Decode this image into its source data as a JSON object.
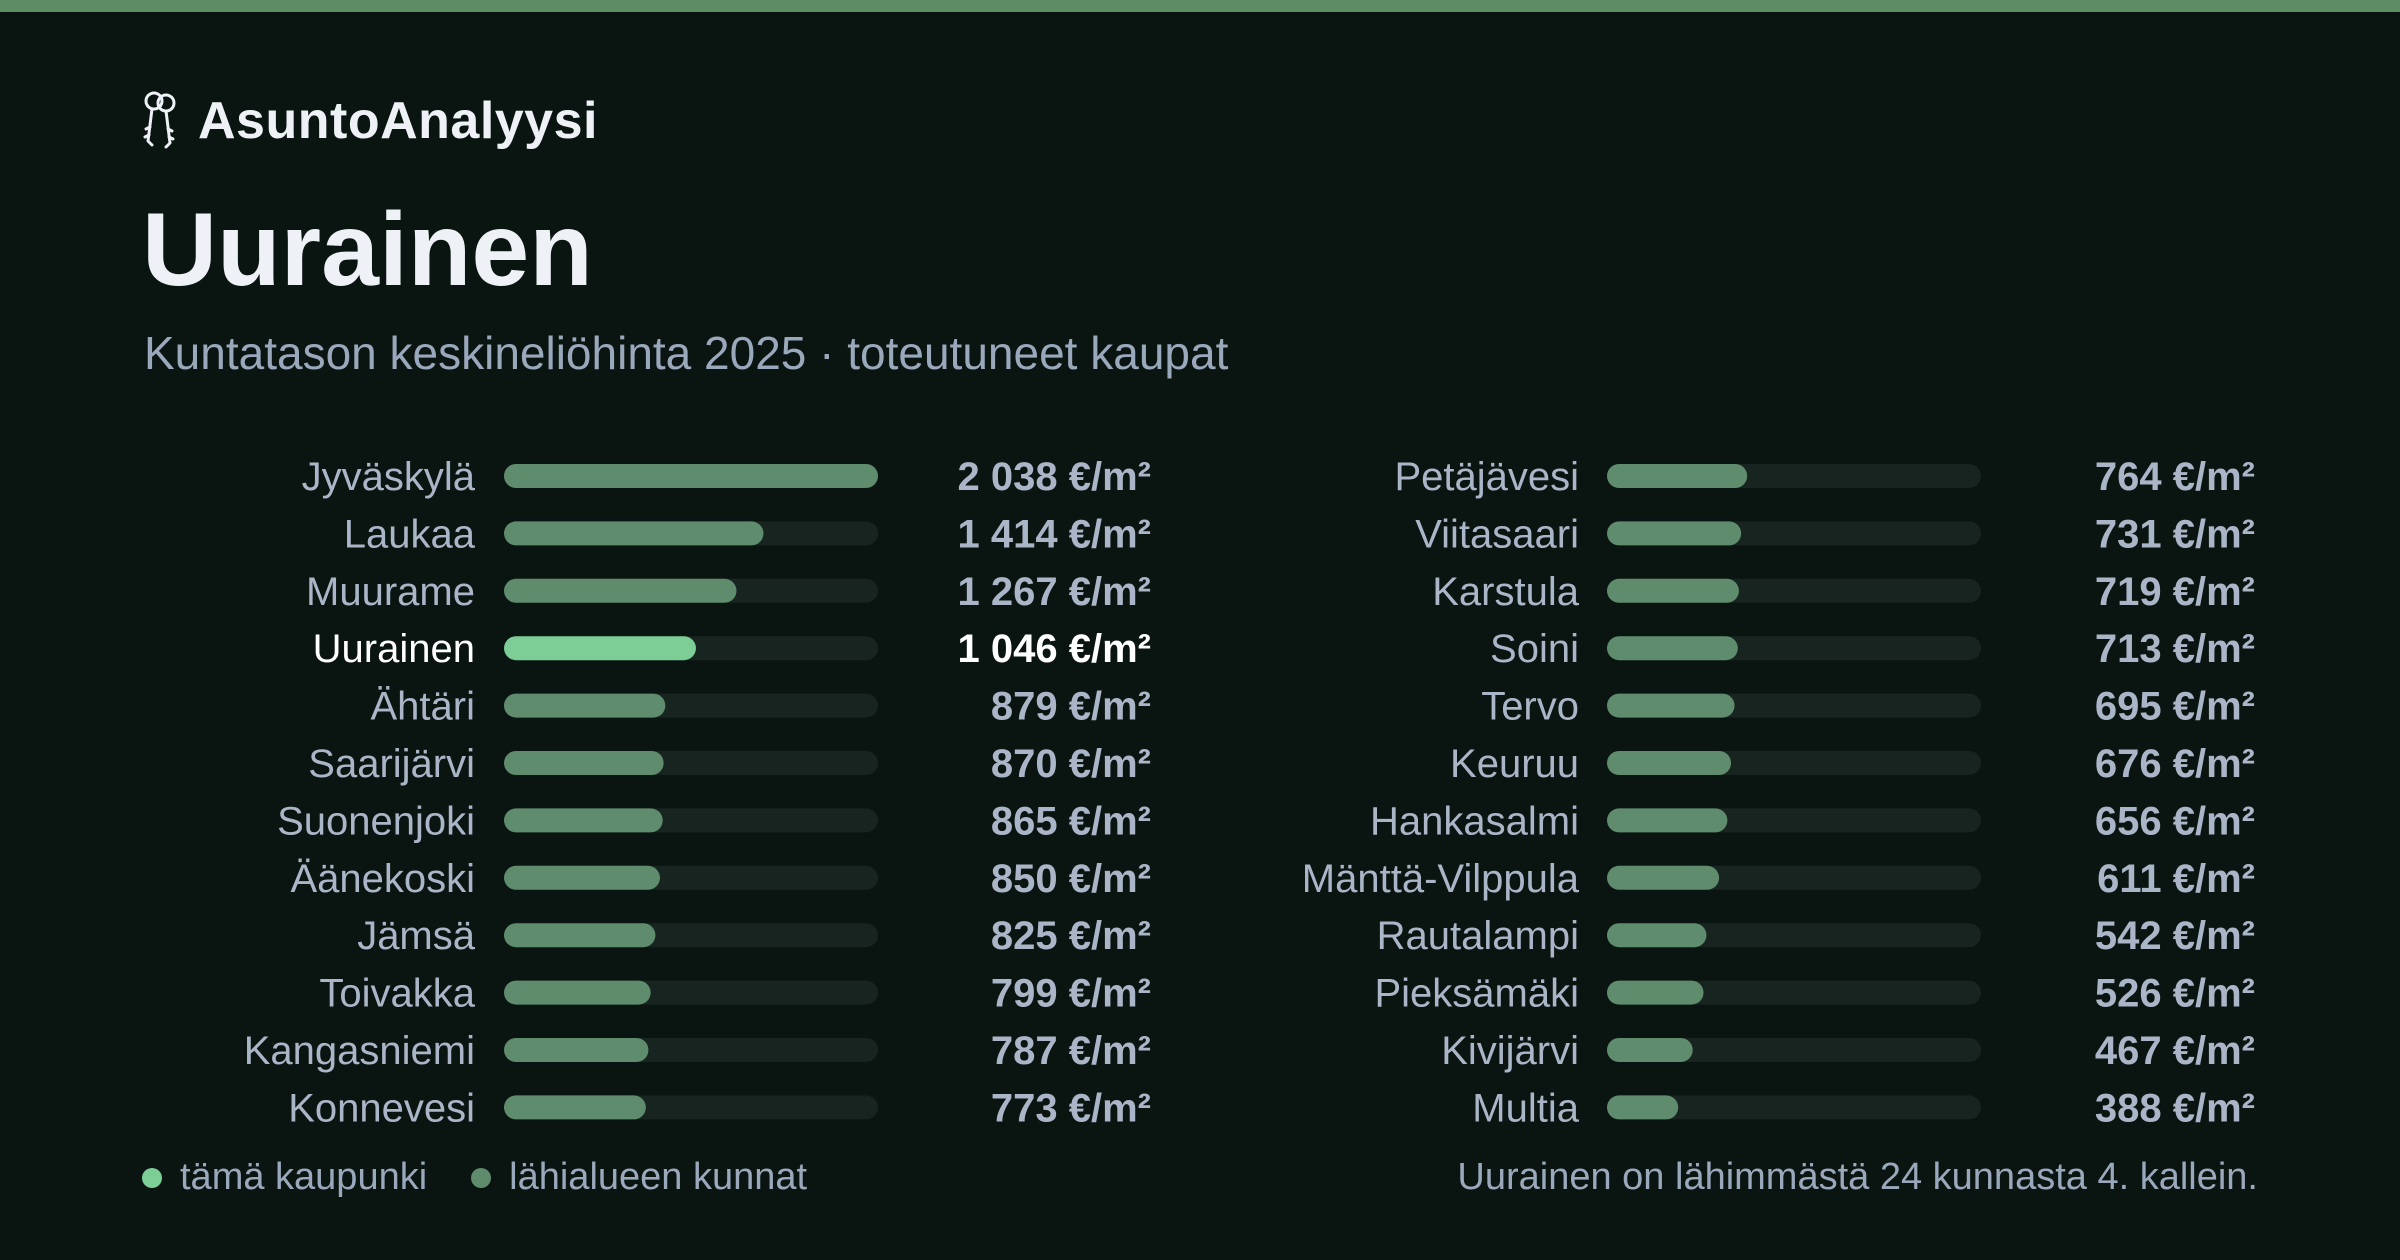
{
  "brand": {
    "name": "AsuntoAnalyysi",
    "icon": "keys-icon"
  },
  "title": "Uurainen",
  "subtitle": "Kuntatason keskineliöhinta 2025 · toteutuneet kaupat",
  "legend": {
    "this_city": "tämä kaupunki",
    "nearby": "lähialueen kunnat"
  },
  "note": "Uurainen on lähimmästä 24 kunnasta 4. kallein.",
  "colors": {
    "background": "#0a1411",
    "highlight_bar": "#7dcd97",
    "bar": "#5e8c6d",
    "track": "#18241f",
    "label": "#aab6c8",
    "highlight_label": "#ffffff",
    "value": "#aab6c8",
    "highlight_value": "#ffffff"
  },
  "chart_data": {
    "type": "bar",
    "orientation": "horizontal",
    "unit": "€/m²",
    "highlight": "Uurainen",
    "xlim": [
      0,
      2038
    ],
    "categories": [
      "Jyväskylä",
      "Laukaa",
      "Muurame",
      "Uurainen",
      "Ähtäri",
      "Saarijärvi",
      "Suonenjoki",
      "Äänekoski",
      "Jämsä",
      "Toivakka",
      "Kangasniemi",
      "Konnevesi",
      "Petäjävesi",
      "Viitasaari",
      "Karstula",
      "Soini",
      "Tervo",
      "Keuruu",
      "Hankasalmi",
      "Mänttä-Vilppula",
      "Rautalampi",
      "Pieksämäki",
      "Kivijärvi",
      "Multia"
    ],
    "values": [
      2038,
      1414,
      1267,
      1046,
      879,
      870,
      865,
      850,
      825,
      799,
      787,
      773,
      764,
      731,
      719,
      713,
      695,
      676,
      656,
      611,
      542,
      526,
      467,
      388
    ],
    "value_labels": [
      "2 038 €/m²",
      "1 414 €/m²",
      "1 267 €/m²",
      "1 046 €/m²",
      "879 €/m²",
      "870 €/m²",
      "865 €/m²",
      "850 €/m²",
      "825 €/m²",
      "799 €/m²",
      "787 €/m²",
      "773 €/m²",
      "764 €/m²",
      "731 €/m²",
      "719 €/m²",
      "713 €/m²",
      "695 €/m²",
      "676 €/m²",
      "656 €/m²",
      "611 €/m²",
      "542 €/m²",
      "526 €/m²",
      "467 €/m²",
      "388 €/m²"
    ]
  }
}
